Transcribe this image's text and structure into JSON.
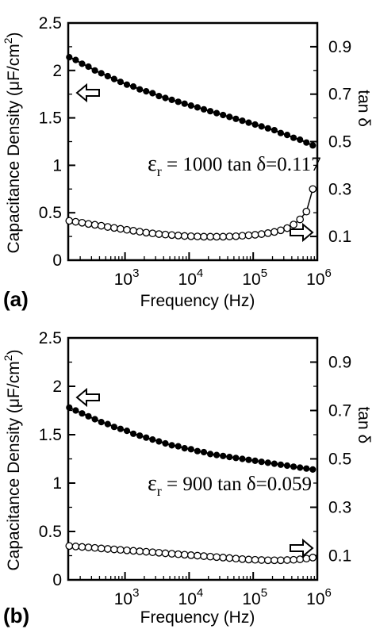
{
  "chart_data": [
    {
      "type": "line",
      "panel_label": "(a)",
      "xlabel": "Frequency (Hz)",
      "xscale": "log",
      "xlim": [
        130,
        1000000
      ],
      "x_ticks": [
        {
          "mant": "10",
          "exp": "3",
          "value": 1000
        },
        {
          "mant": "10",
          "exp": "4",
          "value": 10000
        },
        {
          "mant": "10",
          "exp": "5",
          "value": 100000
        },
        {
          "mant": "10",
          "exp": "6",
          "value": 1000000
        }
      ],
      "ylabel": {
        "main": "Capacitance Density (",
        "mu": "μ",
        "unit": "F/cm",
        "sup": "2",
        "close": ")"
      },
      "ylim": [
        0,
        2.5
      ],
      "y_ticks": [
        "0",
        "0.5",
        "1",
        "1.5",
        "2",
        "2.5"
      ],
      "y2label": "tan δ",
      "y2lim": [
        0,
        1.0
      ],
      "y2_ticks": [
        "0.1",
        "0.3",
        "0.5",
        "0.7",
        "0.9"
      ],
      "annotation": {
        "eps": "ε",
        "sub": "r",
        "text": " = 1000   tan δ=0.117"
      },
      "series": [
        {
          "role": "capacitance",
          "axis": "left",
          "marker": "filled-circle",
          "x_log_range": [
            2.13,
            5.93
          ],
          "values": [
            2.14,
            2.11,
            2.07,
            2.04,
            2.0,
            1.97,
            1.94,
            1.91,
            1.88,
            1.85,
            1.83,
            1.8,
            1.78,
            1.76,
            1.73,
            1.71,
            1.69,
            1.67,
            1.65,
            1.63,
            1.61,
            1.59,
            1.57,
            1.55,
            1.53,
            1.51,
            1.49,
            1.47,
            1.45,
            1.43,
            1.41,
            1.39,
            1.37,
            1.34,
            1.32,
            1.29,
            1.27,
            1.24,
            1.21
          ]
        },
        {
          "role": "tan_delta",
          "axis": "right",
          "marker": "open-circle",
          "x_log_range": [
            2.13,
            5.93
          ],
          "values": [
            0.166,
            0.162,
            0.158,
            0.153,
            0.149,
            0.145,
            0.14,
            0.136,
            0.132,
            0.128,
            0.124,
            0.12,
            0.116,
            0.113,
            0.11,
            0.108,
            0.106,
            0.104,
            0.102,
            0.101,
            0.1,
            0.099,
            0.099,
            0.099,
            0.099,
            0.1,
            0.101,
            0.103,
            0.105,
            0.107,
            0.11,
            0.114,
            0.119,
            0.126,
            0.135,
            0.15,
            0.172,
            0.205,
            0.3
          ]
        }
      ]
    },
    {
      "type": "line",
      "panel_label": "(b)",
      "xlabel": "Frequency (Hz)",
      "xscale": "log",
      "xlim": [
        130,
        1000000
      ],
      "x_ticks": [
        {
          "mant": "10",
          "exp": "3",
          "value": 1000
        },
        {
          "mant": "10",
          "exp": "4",
          "value": 10000
        },
        {
          "mant": "10",
          "exp": "5",
          "value": 100000
        },
        {
          "mant": "10",
          "exp": "6",
          "value": 1000000
        }
      ],
      "ylabel": {
        "main": "Capacitance Density (",
        "mu": "μ",
        "unit": "F/cm",
        "sup": "2",
        "close": ")"
      },
      "ylim": [
        0,
        2.5
      ],
      "y_ticks": [
        "0",
        "0.5",
        "1",
        "1.5",
        "2",
        "2.5"
      ],
      "y2label": "tan δ",
      "y2lim": [
        0,
        1.0
      ],
      "y2_ticks": [
        "0.1",
        "0.3",
        "0.5",
        "0.7",
        "0.9"
      ],
      "annotation": {
        "eps": "ε",
        "sub": "r",
        "text": " = 900   tan δ=0.059"
      },
      "series": [
        {
          "role": "capacitance",
          "axis": "left",
          "marker": "filled-circle",
          "x_log_range": [
            2.13,
            5.93
          ],
          "values": [
            1.78,
            1.75,
            1.72,
            1.69,
            1.66,
            1.63,
            1.61,
            1.58,
            1.56,
            1.54,
            1.51,
            1.49,
            1.47,
            1.45,
            1.43,
            1.41,
            1.39,
            1.38,
            1.36,
            1.35,
            1.33,
            1.32,
            1.3,
            1.29,
            1.28,
            1.27,
            1.26,
            1.25,
            1.24,
            1.23,
            1.22,
            1.21,
            1.2,
            1.19,
            1.18,
            1.17,
            1.16,
            1.15,
            1.14
          ]
        },
        {
          "role": "tan_delta",
          "axis": "right",
          "marker": "open-circle",
          "x_log_range": [
            2.13,
            5.93
          ],
          "values": [
            0.14,
            0.138,
            0.136,
            0.134,
            0.132,
            0.13,
            0.128,
            0.126,
            0.124,
            0.122,
            0.12,
            0.118,
            0.116,
            0.114,
            0.112,
            0.11,
            0.108,
            0.106,
            0.104,
            0.102,
            0.1,
            0.098,
            0.096,
            0.094,
            0.092,
            0.09,
            0.088,
            0.086,
            0.084,
            0.083,
            0.082,
            0.081,
            0.081,
            0.081,
            0.082,
            0.083,
            0.085,
            0.088,
            0.092
          ]
        }
      ]
    }
  ]
}
